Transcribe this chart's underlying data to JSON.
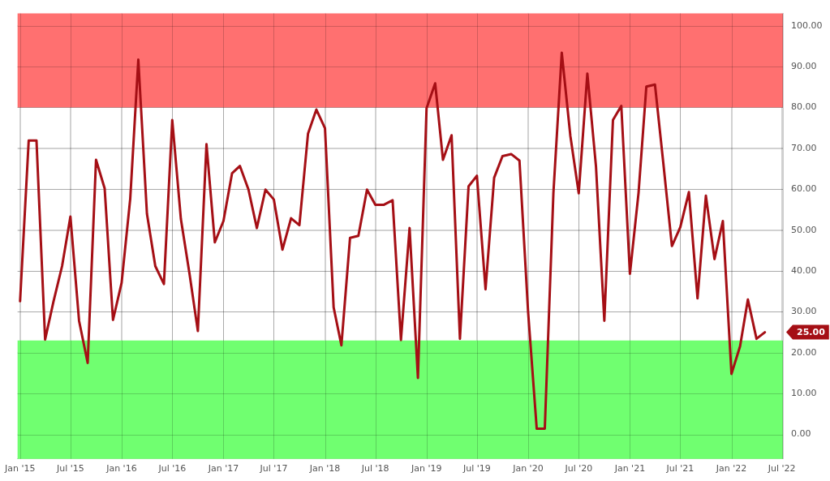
{
  "chart_data": {
    "type": "line",
    "x": [
      "2015-01",
      "2015-02",
      "2015-03",
      "2015-04",
      "2015-05",
      "2015-06",
      "2015-07",
      "2015-08",
      "2015-09",
      "2015-10",
      "2015-11",
      "2015-12",
      "2016-01",
      "2016-02",
      "2016-03",
      "2016-04",
      "2016-05",
      "2016-06",
      "2016-07",
      "2016-08",
      "2016-09",
      "2016-10",
      "2016-11",
      "2016-12",
      "2017-01",
      "2017-02",
      "2017-03",
      "2017-04",
      "2017-05",
      "2017-06",
      "2017-07",
      "2017-08",
      "2017-09",
      "2017-10",
      "2017-11",
      "2017-12",
      "2018-01",
      "2018-02",
      "2018-03",
      "2018-04",
      "2018-05",
      "2018-06",
      "2018-07",
      "2018-08",
      "2018-09",
      "2018-10",
      "2018-11",
      "2018-12",
      "2019-01",
      "2019-02",
      "2019-03",
      "2019-04",
      "2019-05",
      "2019-06",
      "2019-07",
      "2019-08",
      "2019-09",
      "2019-10",
      "2019-11",
      "2019-12",
      "2020-01",
      "2020-02",
      "2020-03",
      "2020-04",
      "2020-05",
      "2020-06",
      "2020-07",
      "2020-08",
      "2020-09",
      "2020-10",
      "2020-11",
      "2020-12",
      "2021-01",
      "2021-02",
      "2021-03",
      "2021-04",
      "2021-05",
      "2021-06",
      "2021-07",
      "2021-08",
      "2021-09",
      "2021-10",
      "2021-11",
      "2021-12",
      "2022-01",
      "2022-02",
      "2022-03",
      "2022-04",
      "2022-05"
    ],
    "series": [
      {
        "color": "#a50f15",
        "values": [
          32.6,
          71.9,
          71.9,
          23.2,
          32.5,
          41.2,
          53.3,
          27.8,
          17.5,
          67.2,
          60.2,
          28.0,
          37.1,
          57.7,
          91.7,
          54.0,
          41.2,
          36.8,
          76.9,
          52.7,
          39.3,
          25.3,
          71.0,
          47.0,
          52.2,
          63.9,
          65.7,
          59.9,
          50.5,
          59.9,
          57.5,
          45.2,
          52.9,
          51.2,
          73.6,
          79.5,
          74.9,
          31.1,
          21.8,
          48.1,
          48.6,
          59.9,
          56.2,
          56.2,
          57.3,
          23.1,
          50.5,
          13.8,
          79.8,
          85.9,
          67.2,
          73.2,
          23.4,
          60.7,
          63.3,
          35.5,
          62.8,
          68.1,
          68.6,
          67.0,
          30.0,
          1.4,
          1.4,
          59.1,
          93.4,
          73.0,
          59.0,
          88.3,
          65.6,
          27.8,
          76.9,
          80.4,
          39.3,
          59.1,
          85.1,
          85.6,
          66.4,
          46.1,
          50.7,
          59.3,
          33.3,
          58.4,
          42.9,
          52.2,
          14.8,
          21.6,
          33.0,
          23.4,
          25
        ]
      }
    ],
    "xlim": [
      "2014-12-23",
      "2022-07-05"
    ],
    "xticks": [
      {
        "value": "2015-01",
        "label": "Jan '15"
      },
      {
        "value": "2015-07",
        "label": "Jul '15"
      },
      {
        "value": "2016-01",
        "label": "Jan '16"
      },
      {
        "value": "2016-07",
        "label": "Jul '16"
      },
      {
        "value": "2017-01",
        "label": "Jan '17"
      },
      {
        "value": "2017-07",
        "label": "Jul '17"
      },
      {
        "value": "2018-01",
        "label": "Jan '18"
      },
      {
        "value": "2018-07",
        "label": "Jul '18"
      },
      {
        "value": "2019-01",
        "label": "Jan '19"
      },
      {
        "value": "2019-07",
        "label": "Jul '19"
      },
      {
        "value": "2020-01",
        "label": "Jan '20"
      },
      {
        "value": "2020-07",
        "label": "Jul '20"
      },
      {
        "value": "2021-01",
        "label": "Jan '21"
      },
      {
        "value": "2021-07",
        "label": "Jul '21"
      },
      {
        "value": "2022-01",
        "label": "Jan '22"
      },
      {
        "value": "2022-07",
        "label": "Jul '22"
      }
    ],
    "ylim": [
      -6,
      103
    ],
    "yticks": [
      {
        "value": 0,
        "label": "0.00"
      },
      {
        "value": 10,
        "label": "10.00"
      },
      {
        "value": 20,
        "label": "20.00"
      },
      {
        "value": 30,
        "label": "30.00"
      },
      {
        "value": 40,
        "label": "40.00"
      },
      {
        "value": 50,
        "label": "50.00"
      },
      {
        "value": 60,
        "label": "60.00"
      },
      {
        "value": 70,
        "label": "70.00"
      },
      {
        "value": 80,
        "label": "80.00"
      },
      {
        "value": 90,
        "label": "90.00"
      },
      {
        "value": 100,
        "label": "100.00"
      }
    ],
    "bands": [
      {
        "axis": "y",
        "from": 80,
        "to": 103,
        "color": "#ff7070"
      },
      {
        "axis": "y",
        "from": -6,
        "to": 23,
        "color": "#70ff70"
      }
    ],
    "annotations": [
      "25.00"
    ],
    "grid": true,
    "legend": false,
    "marker": "none",
    "line_style": "solid"
  }
}
